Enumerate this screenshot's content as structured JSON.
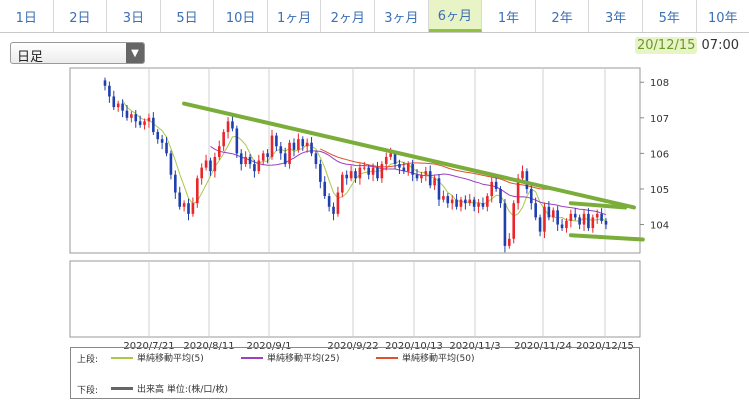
{
  "tabs": [
    {
      "label": "1日"
    },
    {
      "label": "2日"
    },
    {
      "label": "3日"
    },
    {
      "label": "5日"
    },
    {
      "label": "10日"
    },
    {
      "label": "1ヶ月"
    },
    {
      "label": "2ヶ月"
    },
    {
      "label": "3ヶ月"
    },
    {
      "label": "6ヶ月",
      "active": true
    },
    {
      "label": "1年"
    },
    {
      "label": "2年"
    },
    {
      "label": "3年"
    },
    {
      "label": "5年"
    },
    {
      "label": "10年"
    }
  ],
  "period_select": {
    "value": "日足"
  },
  "datetime": {
    "date": "20/12/15",
    "time": "07:00"
  },
  "legend": {
    "upper_label": "上段:",
    "lower_label": "下段:",
    "ma5": "単純移動平均(5)",
    "ma25": "単純移動平均(25)",
    "ma50": "単純移動平均(50)",
    "volume": "出来高 単位:(株/口/枚)"
  },
  "colors": {
    "up": "#e8262b",
    "down": "#1f3fae",
    "ma5": "#a8c84a",
    "ma25": "#9b3fc4",
    "ma50": "#e0502c",
    "trend": "#7aad3a",
    "accent": "#8fc23e"
  },
  "chart_data": {
    "type": "candlestick",
    "ylim": [
      103.2,
      108.4
    ],
    "y_ticks": [
      104,
      105,
      106,
      107,
      108
    ],
    "x_tick_labels": [
      "2020/7/21",
      "2020/8/11",
      "2020/9/1",
      "2020/9/22",
      "2020/10/13",
      "2020/11/3",
      "2020/11/24",
      "2020/12/15"
    ],
    "close": [
      107.9,
      107.6,
      107.3,
      107.4,
      107.2,
      107.0,
      107.1,
      106.9,
      106.8,
      106.9,
      107.0,
      106.6,
      106.4,
      106.3,
      106.0,
      105.4,
      104.9,
      104.5,
      104.6,
      104.3,
      104.6,
      105.3,
      105.6,
      105.8,
      105.5,
      105.9,
      106.2,
      106.6,
      106.9,
      106.7,
      106.0,
      105.7,
      105.9,
      105.7,
      105.5,
      105.8,
      106.0,
      105.9,
      106.5,
      106.2,
      106.0,
      105.7,
      106.3,
      106.1,
      106.4,
      106.2,
      106.3,
      106.0,
      105.7,
      105.2,
      104.8,
      104.5,
      104.3,
      104.9,
      105.4,
      105.3,
      105.5,
      105.3,
      105.6,
      105.6,
      105.4,
      105.6,
      105.3,
      105.7,
      105.9,
      106.0,
      105.7,
      105.6,
      105.5,
      105.7,
      105.4,
      105.3,
      105.4,
      105.5,
      105.1,
      105.3,
      104.7,
      104.8,
      104.6,
      104.7,
      104.5,
      104.7,
      104.6,
      104.7,
      104.5,
      104.6,
      104.5,
      104.8,
      105.2,
      105.0,
      104.6,
      103.4,
      103.6,
      104.6,
      105.3,
      105.5,
      105.0,
      104.6,
      104.2,
      103.8,
      104.5,
      104.2,
      104.4,
      104.0,
      103.9,
      104.1,
      104.3,
      104.2,
      104.0,
      104.3,
      103.9,
      104.2,
      104.3,
      104.1,
      104.0
    ],
    "series": [
      {
        "name": "単純移動平均(5)",
        "period": 5
      },
      {
        "name": "単純移動平均(25)",
        "period": 25
      },
      {
        "name": "単純移動平均(50)",
        "period": 50
      }
    ],
    "trendlines": [
      {
        "points": [
          [
            18,
            107.4
          ],
          [
            114,
            104.6
          ]
        ]
      },
      {
        "points": [
          [
            106,
            104.6
          ],
          [
            112,
            104.6
          ]
        ]
      },
      {
        "points": [
          [
            106,
            103.7
          ],
          [
            116,
            103.7
          ]
        ]
      }
    ],
    "volume_panel": {
      "data": []
    }
  }
}
